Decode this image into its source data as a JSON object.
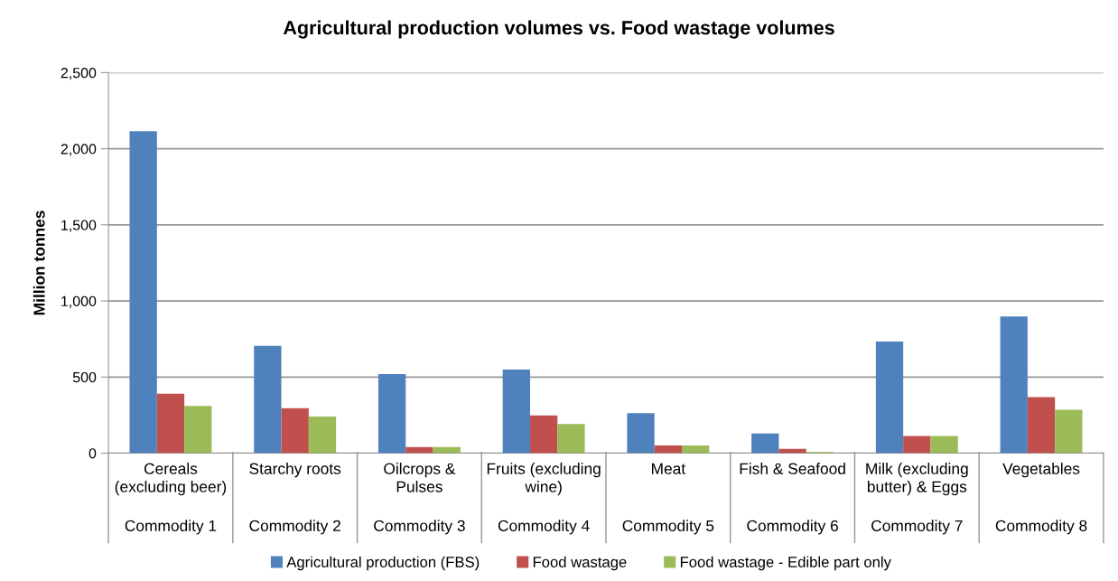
{
  "chart_data": {
    "type": "bar",
    "title": "Agricultural production volumes vs. Food wastage volumes",
    "ylabel": "Million tonnes",
    "categories": [
      "Cereals (excluding beer)",
      "Starchy roots",
      "Oilcrops & Pulses",
      "Fruits (excluding wine)",
      "Meat",
      "Fish & Seafood",
      "Milk (excluding butter) & Eggs",
      "Vegetables"
    ],
    "series": [
      {
        "name": "Agricultural production (FBS)",
        "color": "#4f81bd",
        "values": [
          2115,
          705,
          520,
          550,
          263,
          130,
          734,
          898
        ]
      },
      {
        "name": "Food wastage",
        "color": "#c0504d",
        "values": [
          390,
          295,
          40,
          248,
          51,
          29,
          113,
          369
        ]
      },
      {
        "name": "Food wastage - Edible part only",
        "color": "#9bbb59",
        "values": [
          311,
          241,
          40,
          191,
          51,
          7,
          113,
          285
        ]
      }
    ],
    "annotations": [
      "Commodity 1",
      "Commodity 2",
      "Commodity 3",
      "Commodity 4",
      "Commodity 5",
      "Commodity 6",
      "Commodity 7",
      "Commodity 8"
    ],
    "ylim": [
      0,
      2500
    ],
    "yticks": [
      0,
      {
        "value": 500,
        "label": "500"
      },
      {
        "value": 1000,
        "label": "1,000"
      },
      {
        "value": 1500,
        "label": "1,500"
      },
      {
        "value": 2000,
        "label": "2,000"
      },
      {
        "value": 2500,
        "label": "2,500"
      }
    ],
    "grid": "y",
    "legend": "bottom"
  }
}
